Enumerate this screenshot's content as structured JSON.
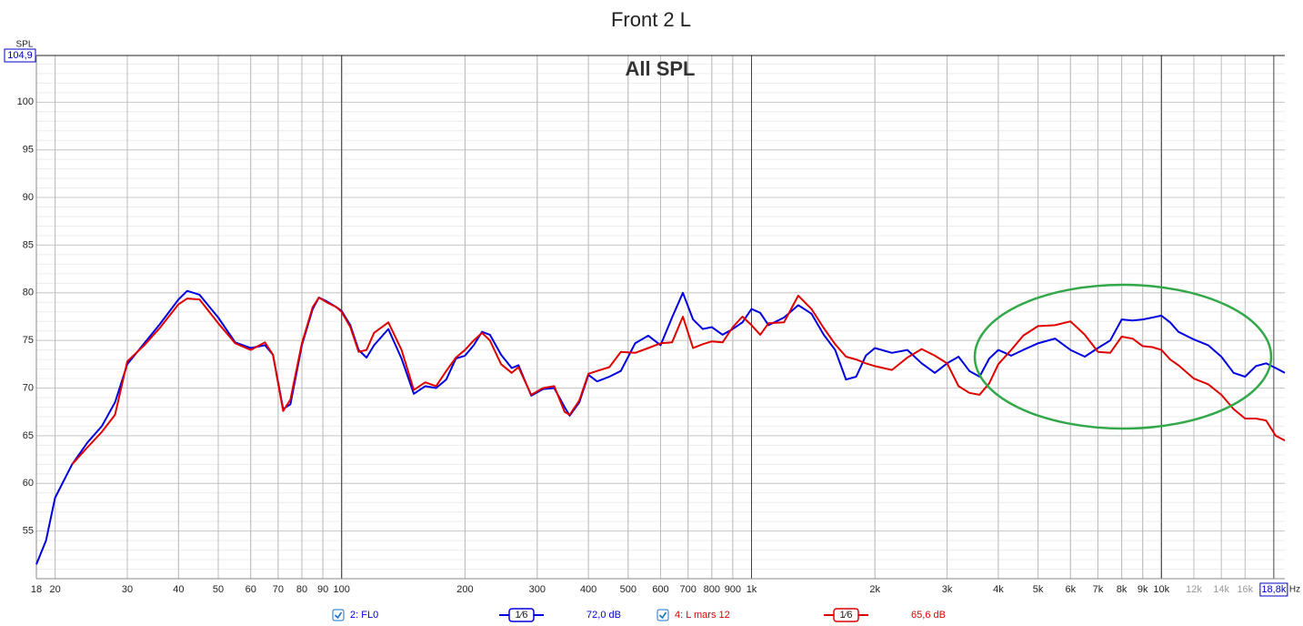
{
  "chart_data": {
    "type": "line",
    "title": "Front 2 L",
    "subtitle": "All SPL",
    "y_label": "SPL",
    "x_unit": "Hz",
    "log_x": true,
    "grid": true,
    "xlim": [
      18,
      20000
    ],
    "ylim": [
      50,
      104.9
    ],
    "xticks": [
      18,
      20,
      30,
      40,
      50,
      60,
      70,
      80,
      90,
      100,
      200,
      300,
      400,
      500,
      600,
      700,
      800,
      900,
      {
        "value": 1000,
        "label": "1k"
      },
      {
        "value": 2000,
        "label": "2k"
      },
      {
        "value": 3000,
        "label": "3k"
      },
      {
        "value": 4000,
        "label": "4k"
      },
      {
        "value": 5000,
        "label": "5k"
      },
      {
        "value": 6000,
        "label": "6k"
      },
      {
        "value": 7000,
        "label": "7k"
      },
      {
        "value": 8000,
        "label": "8k"
      },
      {
        "value": 9000,
        "label": "9k"
      },
      {
        "value": 10000,
        "label": "10k"
      },
      {
        "value": 12000,
        "label": "12k"
      },
      {
        "value": 14000,
        "label": "14k"
      },
      {
        "value": 16000,
        "label": "16k"
      },
      {
        "value": 18800,
        "label": "18,8k"
      }
    ],
    "yticks": [
      55,
      60,
      65,
      70,
      75,
      80,
      85,
      90,
      95,
      100,
      {
        "value": 104.9,
        "label": "104,9"
      }
    ],
    "x": [
      18,
      19,
      20,
      22,
      24,
      26,
      28,
      30,
      33,
      36,
      40,
      42,
      45,
      50,
      55,
      60,
      65,
      68,
      72,
      75,
      80,
      85,
      88,
      92,
      97,
      100,
      105,
      110,
      115,
      120,
      130,
      140,
      150,
      160,
      170,
      180,
      190,
      200,
      210,
      220,
      230,
      245,
      260,
      270,
      290,
      310,
      330,
      350,
      360,
      380,
      400,
      420,
      450,
      480,
      520,
      560,
      600,
      640,
      680,
      720,
      760,
      800,
      850,
      900,
      950,
      1000,
      1050,
      1100,
      1200,
      1300,
      1400,
      1500,
      1600,
      1700,
      1800,
      1900,
      2000,
      2200,
      2400,
      2600,
      2800,
      3000,
      3200,
      3400,
      3600,
      3800,
      4000,
      4300,
      4600,
      5000,
      5500,
      6000,
      6500,
      7000,
      7500,
      8000,
      8500,
      9000,
      9500,
      10000,
      10500,
      11000,
      12000,
      13000,
      14000,
      15000,
      16000,
      17000,
      18000,
      19000,
      20000
    ],
    "series": [
      {
        "name": "2: FL0",
        "color": "#0000e0",
        "smoothing": "1⁄6",
        "level": "72,0 dB",
        "values": [
          51.5,
          54,
          58.5,
          62,
          64.3,
          66,
          68.5,
          72.5,
          74.7,
          76.7,
          79.3,
          80.2,
          79.8,
          77.4,
          74.8,
          74.2,
          74.5,
          73.5,
          67.8,
          68.3,
          74.5,
          78.3,
          79.5,
          79.1,
          78.5,
          78.1,
          76.6,
          74.0,
          73.2,
          74.5,
          76.2,
          73.1,
          69.4,
          70.2,
          70.0,
          70.9,
          73.1,
          73.4,
          74.5,
          75.9,
          75.6,
          73.5,
          72.1,
          72.4,
          69.2,
          69.9,
          70,
          68.0,
          67.1,
          68.5,
          71.4,
          70.7,
          71.2,
          71.8,
          74.7,
          75.5,
          74.5,
          77.4,
          80.0,
          77.2,
          76.2,
          76.4,
          75.6,
          76.2,
          76.9,
          78.3,
          77.9,
          76.6,
          77.4,
          78.7,
          77.8,
          75.6,
          74.0,
          70.9,
          71.2,
          73.4,
          74.2,
          73.7,
          74.0,
          72.6,
          71.6,
          72.6,
          73.3,
          71.8,
          71.2,
          73.1,
          74.0,
          73.4,
          74.0,
          74.7,
          75.2,
          74.0,
          73.3,
          74.2,
          75.0,
          77.2,
          77.1,
          77.2,
          77.4,
          77.6,
          76.9,
          75.9,
          75.1,
          74.5,
          73.3,
          71.6,
          71.2,
          72.3,
          72.6,
          72.1,
          71.6
        ]
      },
      {
        "name": "4: L mars 12",
        "color": "#e00000",
        "smoothing": "1⁄6",
        "level": "65,6 dB",
        "values": [
          null,
          null,
          null,
          62,
          63.8,
          65.4,
          67.2,
          72.8,
          74.5,
          76.3,
          78.8,
          79.4,
          79.3,
          76.8,
          74.7,
          74.0,
          74.8,
          73.5,
          67.6,
          68.8,
          74.7,
          78.5,
          79.5,
          79.0,
          78.5,
          78.0,
          76.4,
          73.8,
          74.0,
          75.8,
          76.9,
          74.0,
          69.8,
          70.6,
          70.2,
          71.8,
          73.2,
          74.0,
          75.0,
          75.8,
          75.0,
          72.5,
          71.6,
          72.2,
          69.3,
          70.0,
          70.2,
          67.5,
          67.2,
          68.7,
          71.5,
          71.8,
          72.2,
          73.8,
          73.7,
          74.2,
          74.7,
          74.8,
          77.5,
          74.2,
          74.6,
          74.9,
          74.8,
          76.4,
          77.5,
          76.6,
          75.6,
          76.8,
          76.9,
          79.7,
          78.3,
          76.3,
          74.6,
          73.3,
          73.0,
          72.6,
          72.3,
          71.9,
          73.2,
          74.1,
          73.4,
          72.6,
          70.2,
          69.5,
          69.3,
          70.5,
          72.5,
          74.0,
          75.5,
          76.5,
          76.6,
          77.0,
          75.6,
          73.8,
          73.7,
          75.4,
          75.2,
          74.4,
          74.3,
          74.0,
          73.0,
          72.4,
          71.0,
          70.4,
          69.3,
          67.8,
          66.8,
          66.8,
          66.6,
          65.0,
          64.5
        ]
      }
    ]
  }
}
